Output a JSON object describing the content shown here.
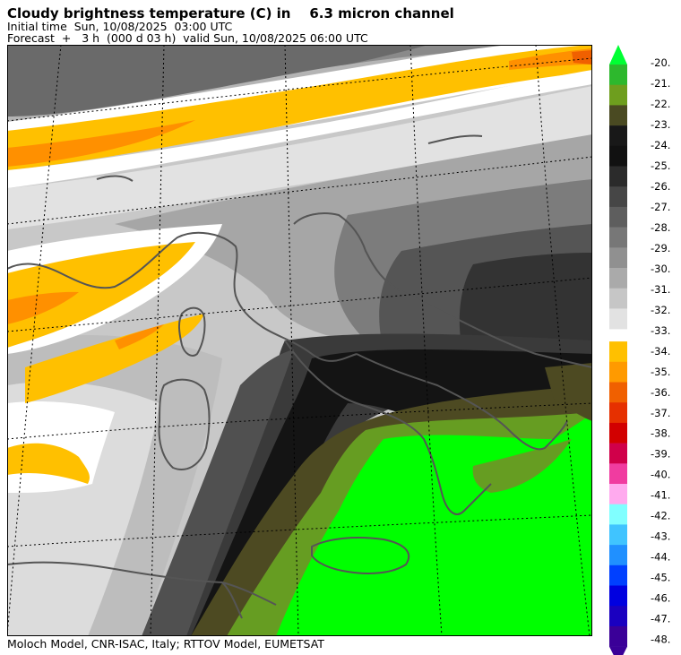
{
  "header": {
    "title": "Cloudy brightness temperature (C) in    6.3 micron channel",
    "initial_time": "Initial time  Sun, 10/08/2025  03:00 UTC",
    "forecast": "Forecast  +   3 h  (000 d 03 h)  valid Sun, 10/08/2025 06:00 UTC"
  },
  "footer": {
    "credits": "Moloch Model, CNR-ISAC, Italy; RTTOV Model, EUMETSAT"
  },
  "legend": {
    "labels": [
      "-20.",
      "-21.",
      "-22.",
      "-23.",
      "-24.",
      "-25.",
      "-26.",
      "-27.",
      "-28.",
      "-29.",
      "-30.",
      "-31.",
      "-32.",
      "-33.",
      "-34.",
      "-35.",
      "-36.",
      "-37.",
      "-38.",
      "-39.",
      "-40.",
      "-41.",
      "-42.",
      "-43.",
      "-44.",
      "-45.",
      "-46.",
      "-47.",
      "-48."
    ],
    "colors_upper": [
      "#2db82d",
      "#6e9e1e",
      "#4a4a22",
      "#181818",
      "#111111",
      "#2b2b2b",
      "#464646",
      "#5e5e5e",
      "#777777",
      "#909090",
      "#aaaaaa",
      "#c6c6c6",
      "#e2e2e2"
    ],
    "colors_lower": [
      "#ffc000",
      "#ff9a00",
      "#f06000",
      "#e63000",
      "#d20000",
      "#d0004a",
      "#f03ca0",
      "#ffaaee",
      "#80ffff",
      "#40c4ff",
      "#2090ff",
      "#0040ff",
      "#0000e0",
      "#1a00c0",
      "#3a0098"
    ],
    "top_arrow_color": "#00ff33",
    "bottom_arrow_color": "#3a0098"
  },
  "map": {
    "colors": {
      "green": "#00ff00",
      "olive": "#669d22",
      "dark_olive": "#4d4a22",
      "black": "#141414",
      "dark_gray": "#3a3a3a",
      "mid_gray": "#707070",
      "gray": "#9a9a9a",
      "light_gray": "#c4c4c4",
      "pale_gray": "#dedede",
      "white": "#ffffff",
      "yellow": "#ffc000",
      "orange": "#ff9000",
      "coast": "#555555"
    }
  }
}
